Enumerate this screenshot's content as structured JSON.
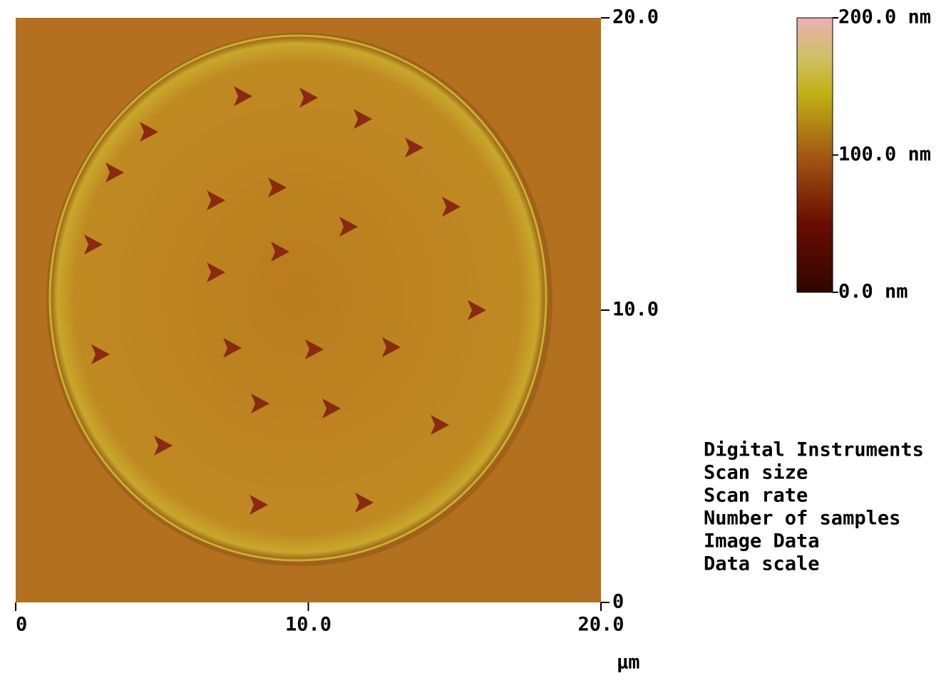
{
  "chart_data": {
    "type": "afm-image",
    "x_label": "µm",
    "xlim": [
      0,
      20
    ],
    "xticks": [
      0,
      {
        "value": 10,
        "label": "10.0"
      },
      {
        "value": 20,
        "label": "20.0"
      }
    ],
    "ylim": [
      0,
      20
    ],
    "yticks": [
      0,
      {
        "value": 10,
        "label": "10.0"
      },
      {
        "value": 20,
        "label": "20.0"
      }
    ],
    "zlim": [
      0,
      200
    ],
    "zticks": [
      {
        "value": 0,
        "label": "0.0 nm"
      },
      {
        "value": 100,
        "label": "100.0 nm"
      },
      {
        "value": 200,
        "label": "200.0 nm"
      }
    ],
    "info_lines": [
      "Digital Instruments",
      "Scan size",
      "Scan rate",
      "Number of samples",
      "Image Data",
      "Data scale"
    ]
  }
}
